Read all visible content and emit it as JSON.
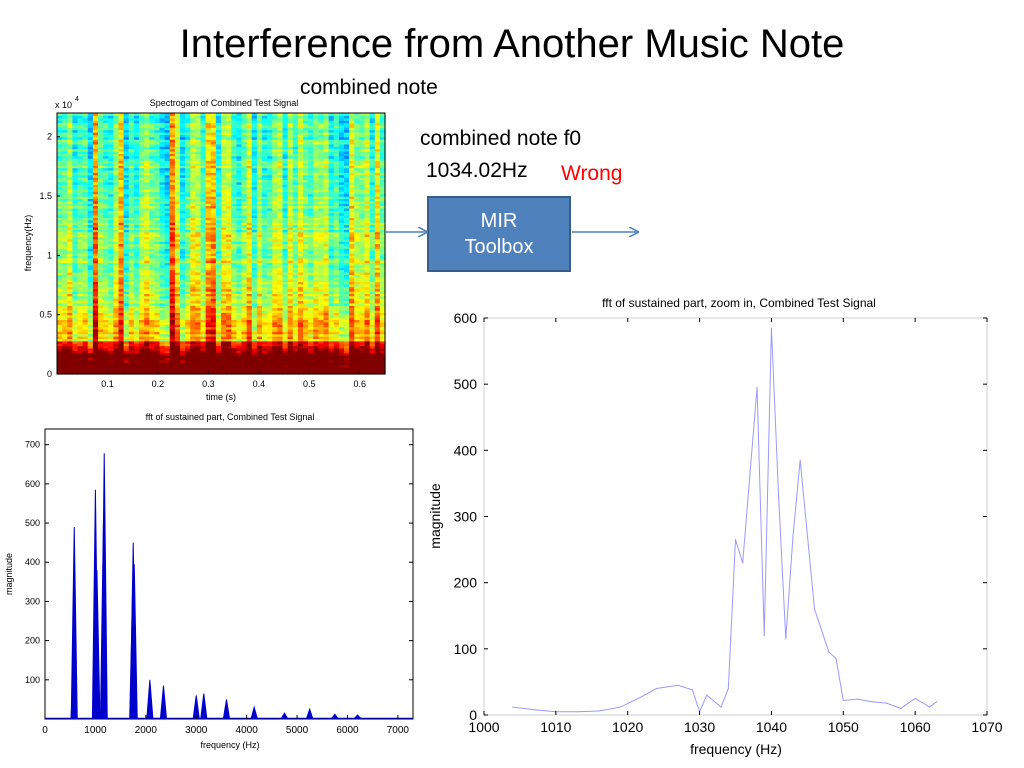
{
  "slide": {
    "title": "Interference from Another Music Note",
    "subtitle": "combined note",
    "f0_label": "combined note f0",
    "f0_value": "1034.02Hz",
    "verdict": "Wrong",
    "verdict_color": "#ff0000",
    "box_label": [
      "MIR",
      "Toolbox"
    ],
    "box_color": "#4f81bd",
    "arrow_color": "#4f81bd"
  },
  "chart_data": [
    {
      "type": "heatmap",
      "title": "Spectrogam of Combined Test Signal",
      "xlabel": "time (s)",
      "ylabel": "frequency(Hz)",
      "y_multiplier": "x 10",
      "y_exponent": "4",
      "xlim": [
        0,
        0.65
      ],
      "ylim": [
        0,
        2.2
      ],
      "x_ticks": [
        "0.1",
        "0.2",
        "0.3",
        "0.4",
        "0.5",
        "0.6"
      ],
      "y_ticks": [
        "0",
        "0.5",
        "1",
        "1.5",
        "2"
      ],
      "x_tick_values": [
        0.1,
        0.2,
        0.3,
        0.4,
        0.5,
        0.6
      ],
      "y_tick_values": [
        0,
        0.5,
        1,
        1.5,
        2
      ],
      "colormap": "jet"
    },
    {
      "type": "line",
      "title": "fft of sustained part, Combined Test Signal",
      "xlabel": "frequency (Hz)",
      "ylabel": "magnitude",
      "xlim": [
        0,
        7300
      ],
      "ylim": [
        0,
        740
      ],
      "x_ticks": [
        "0",
        "1000",
        "2000",
        "3000",
        "4000",
        "5000",
        "6000",
        "7000"
      ],
      "y_ticks": [
        "100",
        "200",
        "300",
        "400",
        "500",
        "600",
        "700"
      ],
      "x_tick_values": [
        0,
        1000,
        2000,
        3000,
        4000,
        5000,
        6000,
        7000
      ],
      "y_tick_values": [
        100,
        200,
        300,
        400,
        500,
        600,
        700
      ],
      "color": "#0000cc",
      "peaks": [
        {
          "x": 580,
          "y": 490
        },
        {
          "x": 575,
          "y": 150
        },
        {
          "x": 1000,
          "y": 585
        },
        {
          "x": 1030,
          "y": 380
        },
        {
          "x": 1175,
          "y": 678
        },
        {
          "x": 1160,
          "y": 510
        },
        {
          "x": 1750,
          "y": 450
        },
        {
          "x": 1770,
          "y": 395
        },
        {
          "x": 1740,
          "y": 340
        },
        {
          "x": 2080,
          "y": 100
        },
        {
          "x": 2350,
          "y": 85
        },
        {
          "x": 3000,
          "y": 60
        },
        {
          "x": 3150,
          "y": 65
        },
        {
          "x": 3600,
          "y": 50
        },
        {
          "x": 4150,
          "y": 30
        },
        {
          "x": 4750,
          "y": 15
        },
        {
          "x": 5250,
          "y": 25
        },
        {
          "x": 5750,
          "y": 12
        },
        {
          "x": 6200,
          "y": 10
        }
      ]
    },
    {
      "type": "line",
      "title": "fft of sustained part, zoom in, Combined Test Signal",
      "xlabel": "frequency (Hz)",
      "ylabel": "magnitude",
      "xlim": [
        1000,
        1070
      ],
      "ylim": [
        0,
        600
      ],
      "x_ticks": [
        "1000",
        "1010",
        "1020",
        "1030",
        "1040",
        "1050",
        "1060",
        "1070"
      ],
      "y_ticks": [
        "0",
        "100",
        "200",
        "300",
        "400",
        "500",
        "600"
      ],
      "x_tick_values": [
        1000,
        1010,
        1020,
        1030,
        1040,
        1050,
        1060,
        1070
      ],
      "y_tick_values": [
        0,
        100,
        200,
        300,
        400,
        500,
        600
      ],
      "color": "#9999ff",
      "x": [
        1004,
        1007,
        1010,
        1013,
        1016,
        1019,
        1022,
        1024,
        1027,
        1029,
        1030,
        1031,
        1033,
        1034,
        1035,
        1036,
        1038,
        1039,
        1040,
        1041,
        1042,
        1043,
        1044,
        1046,
        1048,
        1049,
        1050,
        1052,
        1054,
        1056,
        1058,
        1060,
        1062,
        1063
      ],
      "y": [
        12,
        8,
        5,
        5,
        6,
        12,
        28,
        40,
        45,
        38,
        5,
        30,
        12,
        40,
        265,
        230,
        495,
        120,
        585,
        330,
        115,
        270,
        385,
        160,
        95,
        85,
        22,
        24,
        20,
        18,
        10,
        25,
        12,
        20
      ]
    }
  ]
}
